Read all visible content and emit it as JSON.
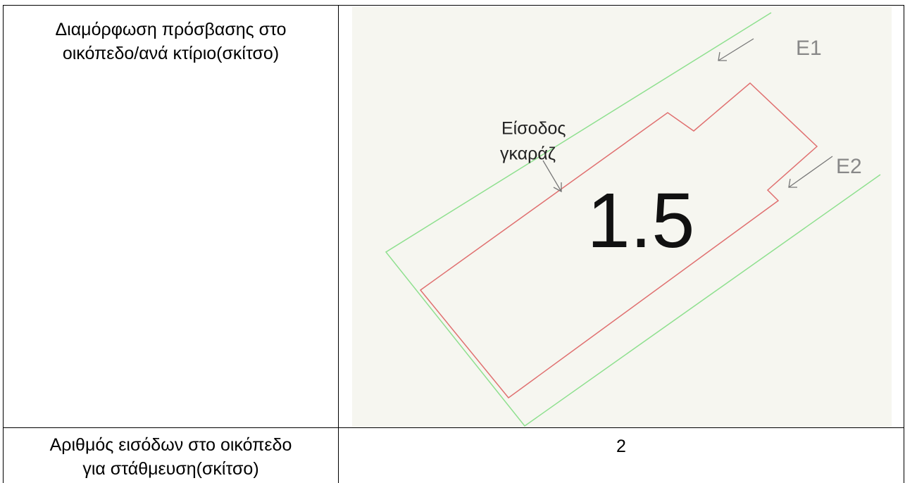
{
  "table": {
    "rows": [
      {
        "label": [
          "Διαμόρφωση πρόσβασης στο",
          "οικόπεδο/ανά κτίριο(σκίτσο)"
        ],
        "sketch": {
          "entrance_label": [
            "Είσοδος",
            "γκαράζ"
          ],
          "entry_1": "E1",
          "entry_2": "E2",
          "plot_number": "1.5"
        }
      },
      {
        "label": [
          "Αριθμός εισόδων στο οικόπεδο",
          "για στάθμευση(σκίτσο)"
        ],
        "value": "2"
      }
    ]
  }
}
